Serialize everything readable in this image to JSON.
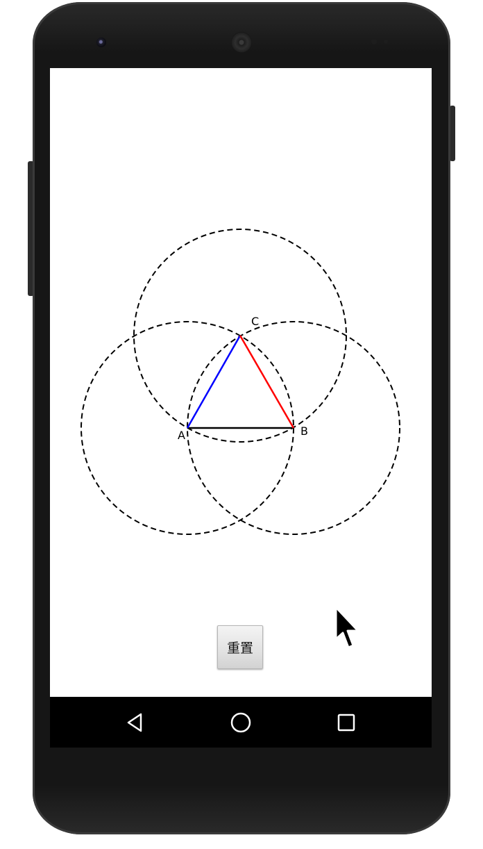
{
  "device": {
    "model": "Android phone",
    "frame_color": "#161616"
  },
  "construction": {
    "points": [
      {
        "id": "A",
        "label": "A"
      },
      {
        "id": "B",
        "label": "B"
      },
      {
        "id": "C",
        "label": "C"
      }
    ],
    "circles_style": "dashed",
    "segments": [
      {
        "from": "A",
        "to": "B",
        "color": "#000000"
      },
      {
        "from": "A",
        "to": "C",
        "color": "#0000ff"
      },
      {
        "from": "C",
        "to": "B",
        "color": "#ff0000"
      }
    ]
  },
  "actions": {
    "reset_label": "重置"
  },
  "navigation": {
    "back_icon": "back-triangle-icon",
    "home_icon": "home-circle-icon",
    "recents_icon": "recents-square-icon"
  }
}
